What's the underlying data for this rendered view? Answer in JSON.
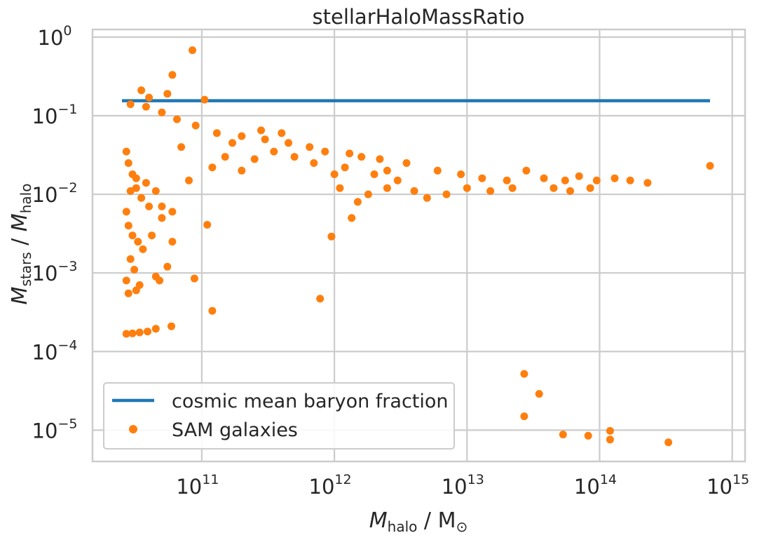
{
  "chart_data": {
    "type": "scatter",
    "title": "stellarHaloMassRatio",
    "xlabel": {
      "sym": "M",
      "sub": "halo",
      "unit": " / M",
      "unit_sub": "⊙"
    },
    "ylabel": {
      "sym": "M",
      "sub": "stars",
      "mid": " / ",
      "sym2": "M",
      "sub2": "halo"
    },
    "xscale": "log",
    "yscale": "log",
    "xlim": [
      15000000000.0,
      1250000000000000.0
    ],
    "ylim": [
      4e-06,
      1.25
    ],
    "grid": true,
    "legend_position": "lower-left",
    "xticks": [
      {
        "base": "10",
        "exp": "11",
        "value": 100000000000.0
      },
      {
        "base": "10",
        "exp": "12",
        "value": 1000000000000.0
      },
      {
        "base": "10",
        "exp": "13",
        "value": 10000000000000.0
      },
      {
        "base": "10",
        "exp": "14",
        "value": 100000000000000.0
      },
      {
        "base": "10",
        "exp": "15",
        "value": 1000000000000000.0
      }
    ],
    "yticks": [
      {
        "base": "10",
        "exp": "0",
        "value": 1
      },
      {
        "base": "10",
        "exp": "−1",
        "value": 0.1
      },
      {
        "base": "10",
        "exp": "−2",
        "value": 0.01
      },
      {
        "base": "10",
        "exp": "−3",
        "value": 0.001
      },
      {
        "base": "10",
        "exp": "−4",
        "value": 0.0001
      },
      {
        "base": "10",
        "exp": "−5",
        "value": 1e-05
      }
    ],
    "series": [
      {
        "name": "cosmic mean baryon fraction",
        "kind": "line",
        "color": "#1f77b4",
        "x": [
          25000000000.0,
          680000000000000.0
        ],
        "y": [
          0.155,
          0.155
        ]
      },
      {
        "name": "SAM galaxies",
        "kind": "scatter",
        "color": "#ff7f0e",
        "points": [
          [
            85000000000.0,
            0.68
          ],
          [
            60000000000.0,
            0.33
          ],
          [
            105000000000.0,
            0.16
          ],
          [
            55000000000.0,
            0.19
          ],
          [
            40000000000.0,
            0.17
          ],
          [
            35000000000.0,
            0.21
          ],
          [
            29000000000.0,
            0.14
          ],
          [
            38000000000.0,
            0.13
          ],
          [
            50000000000.0,
            0.11
          ],
          [
            65000000000.0,
            0.09
          ],
          [
            90000000000.0,
            0.075
          ],
          [
            130000000000.0,
            0.06
          ],
          [
            200000000000.0,
            0.055
          ],
          [
            300000000000.0,
            0.05
          ],
          [
            450000000000.0,
            0.045
          ],
          [
            650000000000.0,
            0.04
          ],
          [
            850000000000.0,
            0.035
          ],
          [
            1300000000000.0,
            0.033
          ],
          [
            1600000000000.0,
            0.03
          ],
          [
            2200000000000.0,
            0.028
          ],
          [
            3500000000000.0,
            0.025
          ],
          [
            6000000000000.0,
            0.02
          ],
          [
            9000000000000.0,
            0.018
          ],
          [
            13000000000000.0,
            0.016
          ],
          [
            20000000000000.0,
            0.015
          ],
          [
            28000000000000.0,
            0.02
          ],
          [
            38000000000000.0,
            0.016
          ],
          [
            55000000000000.0,
            0.015
          ],
          [
            70000000000000.0,
            0.017
          ],
          [
            95000000000000.0,
            0.015
          ],
          [
            130000000000000.0,
            0.016
          ],
          [
            170000000000000.0,
            0.015
          ],
          [
            230000000000000.0,
            0.014
          ],
          [
            680000000000000.0,
            0.023
          ],
          [
            27000000000.0,
            0.035
          ],
          [
            28000000000.0,
            0.025
          ],
          [
            30000000000.0,
            0.018
          ],
          [
            32000000000.0,
            0.012
          ],
          [
            35000000000.0,
            0.009
          ],
          [
            40000000000.0,
            0.007
          ],
          [
            27000000000.0,
            0.006
          ],
          [
            28000000000.0,
            0.004
          ],
          [
            30000000000.0,
            0.003
          ],
          [
            33000000000.0,
            0.0025
          ],
          [
            36000000000.0,
            0.002
          ],
          [
            29000000000.0,
            0.0015
          ],
          [
            31000000000.0,
            0.0011
          ],
          [
            27000000000.0,
            0.0008
          ],
          [
            34000000000.0,
            0.0007
          ],
          [
            28000000000.0,
            0.00055
          ],
          [
            32000000000.0,
            0.0006
          ],
          [
            45000000000.0,
            0.0009
          ],
          [
            55000000000.0,
            0.0012
          ],
          [
            48000000000.0,
            0.0008
          ],
          [
            60000000000.0,
            0.0025
          ],
          [
            50000000000.0,
            0.005
          ],
          [
            42000000000.0,
            0.003
          ],
          [
            27000000000.0,
            0.000168
          ],
          [
            30000000000.0,
            0.00017
          ],
          [
            34000000000.0,
            0.000175
          ],
          [
            39000000000.0,
            0.00018
          ],
          [
            45000000000.0,
            0.000195
          ],
          [
            59000000000.0,
            0.00021
          ],
          [
            88000000000.0,
            0.00085
          ],
          [
            120000000000.0,
            0.00033
          ],
          [
            110000000000.0,
            0.0041
          ],
          [
            780000000000.0,
            0.00047
          ],
          [
            950000000000.0,
            0.0029
          ],
          [
            1350000000000.0,
            0.005
          ],
          [
            27000000000000.0,
            5.2e-05
          ],
          [
            35000000000000.0,
            2.9e-05
          ],
          [
            27000000000000.0,
            1.5e-05
          ],
          [
            53000000000000.0,
            8.8e-06
          ],
          [
            82000000000000.0,
            8.5e-06
          ],
          [
            120000000000000.0,
            9.8e-06
          ],
          [
            120000000000000.0,
            7.6e-06
          ],
          [
            330000000000000.0,
            7e-06
          ],
          [
            1000000000000.0,
            0.018
          ],
          [
            1100000000000.0,
            0.012
          ],
          [
            1200000000000.0,
            0.022
          ],
          [
            1500000000000.0,
            0.008
          ],
          [
            1800000000000.0,
            0.01
          ],
          [
            2500000000000.0,
            0.012
          ],
          [
            3000000000000.0,
            0.015
          ],
          [
            4000000000000.0,
            0.011
          ],
          [
            5000000000000.0,
            0.009
          ],
          [
            7000000000000.0,
            0.01
          ],
          [
            10000000000000.0,
            0.012
          ],
          [
            15000000000000.0,
            0.011
          ],
          [
            22000000000000.0,
            0.012
          ],
          [
            45000000000000.0,
            0.012
          ],
          [
            60000000000000.0,
            0.011
          ],
          [
            85000000000000.0,
            0.012
          ],
          [
            2000000000000.0,
            0.018
          ],
          [
            2500000000000.0,
            0.02
          ],
          [
            150000000000.0,
            0.03
          ],
          [
            250000000000.0,
            0.028
          ],
          [
            350000000000.0,
            0.035
          ],
          [
            500000000000.0,
            0.03
          ],
          [
            700000000000.0,
            0.025
          ],
          [
            200000000000.0,
            0.02
          ],
          [
            120000000000.0,
            0.022
          ],
          [
            80000000000.0,
            0.015
          ],
          [
            70000000000.0,
            0.04
          ],
          [
            170000000000.0,
            0.045
          ],
          [
            280000000000.0,
            0.065
          ],
          [
            400000000000.0,
            0.06
          ],
          [
            60000000000.0,
            0.006
          ],
          [
            50000000000.0,
            0.007
          ],
          [
            45000000000.0,
            0.011
          ],
          [
            38000000000.0,
            0.014
          ],
          [
            32000000000.0,
            0.016
          ],
          [
            29000000000.0,
            0.011
          ]
        ]
      }
    ]
  },
  "legend": {
    "line_label": "cosmic mean baryon fraction",
    "dot_label": "SAM galaxies"
  }
}
